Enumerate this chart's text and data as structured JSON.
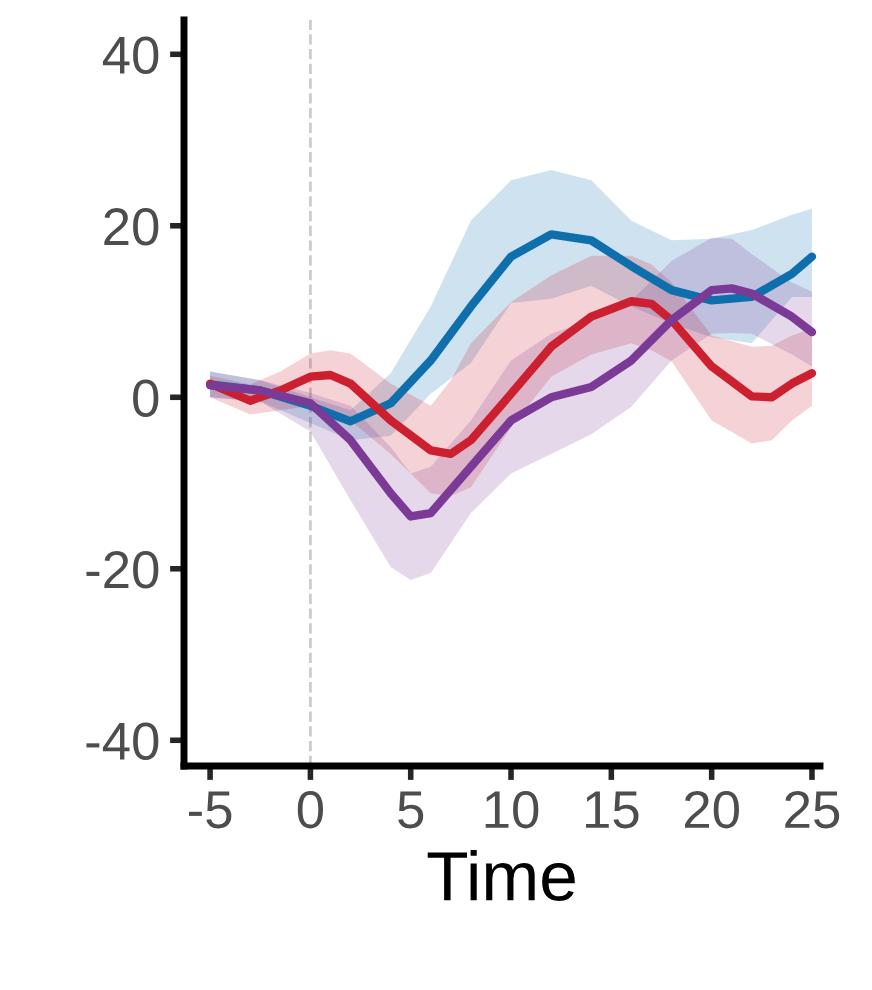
{
  "chart_data": {
    "type": "line",
    "xlabel": "Time",
    "xlim": [
      -6.3,
      25.4
    ],
    "ylim": [
      -43,
      44
    ],
    "xticks": [
      -5,
      0,
      5,
      10,
      15,
      20,
      25
    ],
    "yticks": [
      -40,
      -20,
      0,
      20,
      40
    ],
    "grid": false,
    "legend": false,
    "marker": "none",
    "line_style": "solid",
    "ref_lines": [
      {
        "axis": "x",
        "value": 0,
        "color": "#cccccc",
        "line_style": "dashed"
      }
    ],
    "series": [
      {
        "color": "#0f6fad",
        "x": [
          -5,
          -2.5,
          0,
          2,
          4,
          6,
          8,
          10,
          12,
          14,
          16,
          18,
          20,
          22,
          24,
          25
        ],
        "values": [
          1.5,
          0.8,
          -1,
          -2.8,
          -0.7,
          4.3,
          10.6,
          16.4,
          19,
          18.3,
          15.3,
          12.5,
          11.3,
          11.7,
          14.4,
          16.4
        ],
        "lower": [
          0,
          -0.5,
          -3,
          -5,
          -4.5,
          0.4,
          4,
          11,
          11.5,
          13,
          10.6,
          8.6,
          7,
          6.3,
          11.7,
          11.7
        ],
        "upper": [
          3,
          2,
          0,
          -1.5,
          2.8,
          10.6,
          20.6,
          25.3,
          26.5,
          25.3,
          20.6,
          18.3,
          18.5,
          19.5,
          21.3,
          22
        ]
      },
      {
        "color": "#cc1f2f",
        "x": [
          -5,
          -3,
          -1.5,
          0,
          1,
          2,
          4,
          6,
          7,
          8,
          10,
          12,
          14,
          16,
          17,
          18,
          20,
          22,
          23,
          24,
          25
        ],
        "values": [
          1.6,
          -0.4,
          0.8,
          2.4,
          2.6,
          1.6,
          -2.7,
          -6.2,
          -6.6,
          -5,
          0.4,
          5.9,
          9.4,
          11.2,
          10.9,
          9,
          3.6,
          0.1,
          0,
          1.6,
          2.8
        ],
        "lower": [
          0,
          -2,
          -1.5,
          -1,
          -1.5,
          -2.7,
          -6.6,
          -11.2,
          -11.5,
          -10.5,
          -3.5,
          2.4,
          5,
          6.3,
          5.5,
          4.2,
          -2.7,
          -5.4,
          -5,
          -2.7,
          -1
        ],
        "upper": [
          2.5,
          1.5,
          3,
          5.1,
          5.5,
          5.1,
          1.6,
          -1,
          2,
          6.3,
          11.1,
          14.2,
          16.5,
          16.5,
          15.5,
          13.4,
          7.2,
          5.9,
          6,
          7.2,
          8
        ]
      },
      {
        "color": "#7b3a96",
        "x": [
          -5,
          -2.5,
          0,
          2,
          4,
          5,
          6,
          8,
          10,
          12,
          14,
          16,
          18,
          20,
          21,
          22,
          24,
          25
        ],
        "values": [
          1.4,
          0.8,
          -0.7,
          -5,
          -11.2,
          -13.9,
          -13.5,
          -8.1,
          -2.7,
          0,
          1.2,
          4.3,
          9,
          12.5,
          12.7,
          12.1,
          9.4,
          7.6
        ],
        "lower": [
          0,
          -0.5,
          -4,
          -12,
          -19.8,
          -21.3,
          -20.5,
          -13.5,
          -8.9,
          -6.6,
          -4.3,
          -1.1,
          4.3,
          7.4,
          7.5,
          7.4,
          5,
          3.6
        ],
        "upper": [
          3,
          2,
          0.5,
          -1,
          -5.8,
          -8.9,
          -8.1,
          -2.7,
          4.3,
          7.4,
          9,
          11.3,
          15.9,
          18.6,
          18.5,
          16.7,
          13.4,
          12.3
        ]
      }
    ]
  }
}
